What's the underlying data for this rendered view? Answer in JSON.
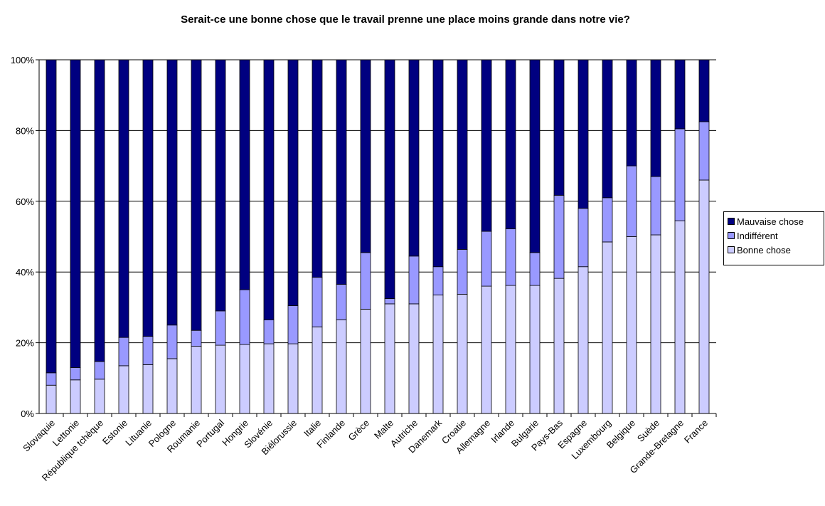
{
  "chart_data": {
    "type": "bar",
    "stacked": true,
    "normalized": true,
    "title": "Serait-ce une bonne chose que le travail prenne une place moins grande dans notre vie?",
    "categories": [
      "Slovaquie",
      "Lettonie",
      "République tchèque",
      "Estonie",
      "Lituanie",
      "Pologne",
      "Roumanie",
      "Portugal",
      "Hongrie",
      "Slovénie",
      "Biélorussie",
      "Italie",
      "Finlande",
      "Grèce",
      "Malte",
      "Autriche",
      "Danemark",
      "Croatie",
      "Allemagne",
      "Irlande",
      "Bulgarie",
      "Pays-Bas",
      "Espagne",
      "Luxembourg",
      "Belgique",
      "Suède",
      "Grande-Bretagne",
      "France"
    ],
    "series": [
      {
        "name": "Bonne chose",
        "color": "#ccccff",
        "values": [
          8,
          9.5,
          9.7,
          13.5,
          13.8,
          15.5,
          19,
          19.3,
          19.5,
          19.7,
          19.7,
          24.5,
          26.5,
          29.5,
          31,
          31,
          33.5,
          33.7,
          36,
          36.2,
          36.2,
          38.2,
          41.5,
          48.5,
          50,
          50.5,
          54.5,
          66
        ]
      },
      {
        "name": "Indifférent",
        "color": "#9999ff",
        "values": [
          3.5,
          3.5,
          5,
          8,
          8,
          9.5,
          4.5,
          9.7,
          15.5,
          6.8,
          10.8,
          14,
          10,
          16,
          1.5,
          13.5,
          8,
          12.7,
          15.5,
          16,
          9.3,
          23.5,
          16.5,
          12.5,
          20,
          16.5,
          26,
          16.5
        ]
      },
      {
        "name": "Mauvaise chose",
        "color": "#000080",
        "values": [
          88.5,
          87,
          85.3,
          78.5,
          78.2,
          75,
          76.5,
          71,
          65,
          73.5,
          69.5,
          61.5,
          63.5,
          54.5,
          67.5,
          55.5,
          58.5,
          53.6,
          48.5,
          47.8,
          54.5,
          38.3,
          42,
          39,
          30,
          33,
          19.5,
          17.5
        ]
      }
    ],
    "y_axis": {
      "ticks": [
        "0%",
        "20%",
        "40%",
        "60%",
        "80%",
        "100%"
      ],
      "min": 0,
      "max": 100
    },
    "legend_position": "right",
    "grid": true
  }
}
